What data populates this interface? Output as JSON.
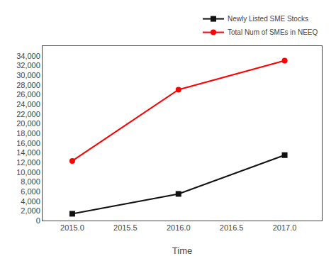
{
  "chart_data": {
    "type": "line",
    "xlabel": "Time",
    "x": [
      2015,
      2016,
      2017
    ],
    "series": [
      {
        "name": "Newly Listed SME Stocks",
        "color": "#111111",
        "marker": "square",
        "line_style": "solid",
        "values": [
          1400,
          5500,
          13500
        ]
      },
      {
        "name": "Total Num of SMEs in NEEQ",
        "color": "#ff0000",
        "marker": "circle",
        "line_style": "solid",
        "values": [
          12300,
          27000,
          33000
        ]
      }
    ],
    "xlim": [
      2014.72,
      2017.35
    ],
    "xticks": [
      {
        "value": 2015.0,
        "label": "2015.0"
      },
      2015.5,
      {
        "value": 2016.0,
        "label": "2016.0"
      },
      2016.5,
      {
        "value": 2017.0,
        "label": "2017.0"
      }
    ],
    "ylim": [
      0,
      36000
    ],
    "yticks": [
      0,
      {
        "value": 2000,
        "label": "2,000"
      },
      {
        "value": 4000,
        "label": "4,000"
      },
      {
        "value": 6000,
        "label": "6,000"
      },
      {
        "value": 8000,
        "label": "8,000"
      },
      {
        "value": 10000,
        "label": "10,000"
      },
      {
        "value": 12000,
        "label": "12,000"
      },
      {
        "value": 14000,
        "label": "14,000"
      },
      {
        "value": 16000,
        "label": "16,000"
      },
      {
        "value": 18000,
        "label": "18,000"
      },
      {
        "value": 20000,
        "label": "20,000"
      },
      {
        "value": 22000,
        "label": "22,000"
      },
      {
        "value": 24000,
        "label": "24,000"
      },
      {
        "value": 26000,
        "label": "26,000"
      },
      {
        "value": 28000,
        "label": "28,000"
      },
      {
        "value": 30000,
        "label": "30,000"
      },
      {
        "value": 32000,
        "label": "32,000"
      },
      {
        "value": 34000,
        "label": "34,000"
      }
    ],
    "grid": false,
    "legend": "upper right"
  }
}
